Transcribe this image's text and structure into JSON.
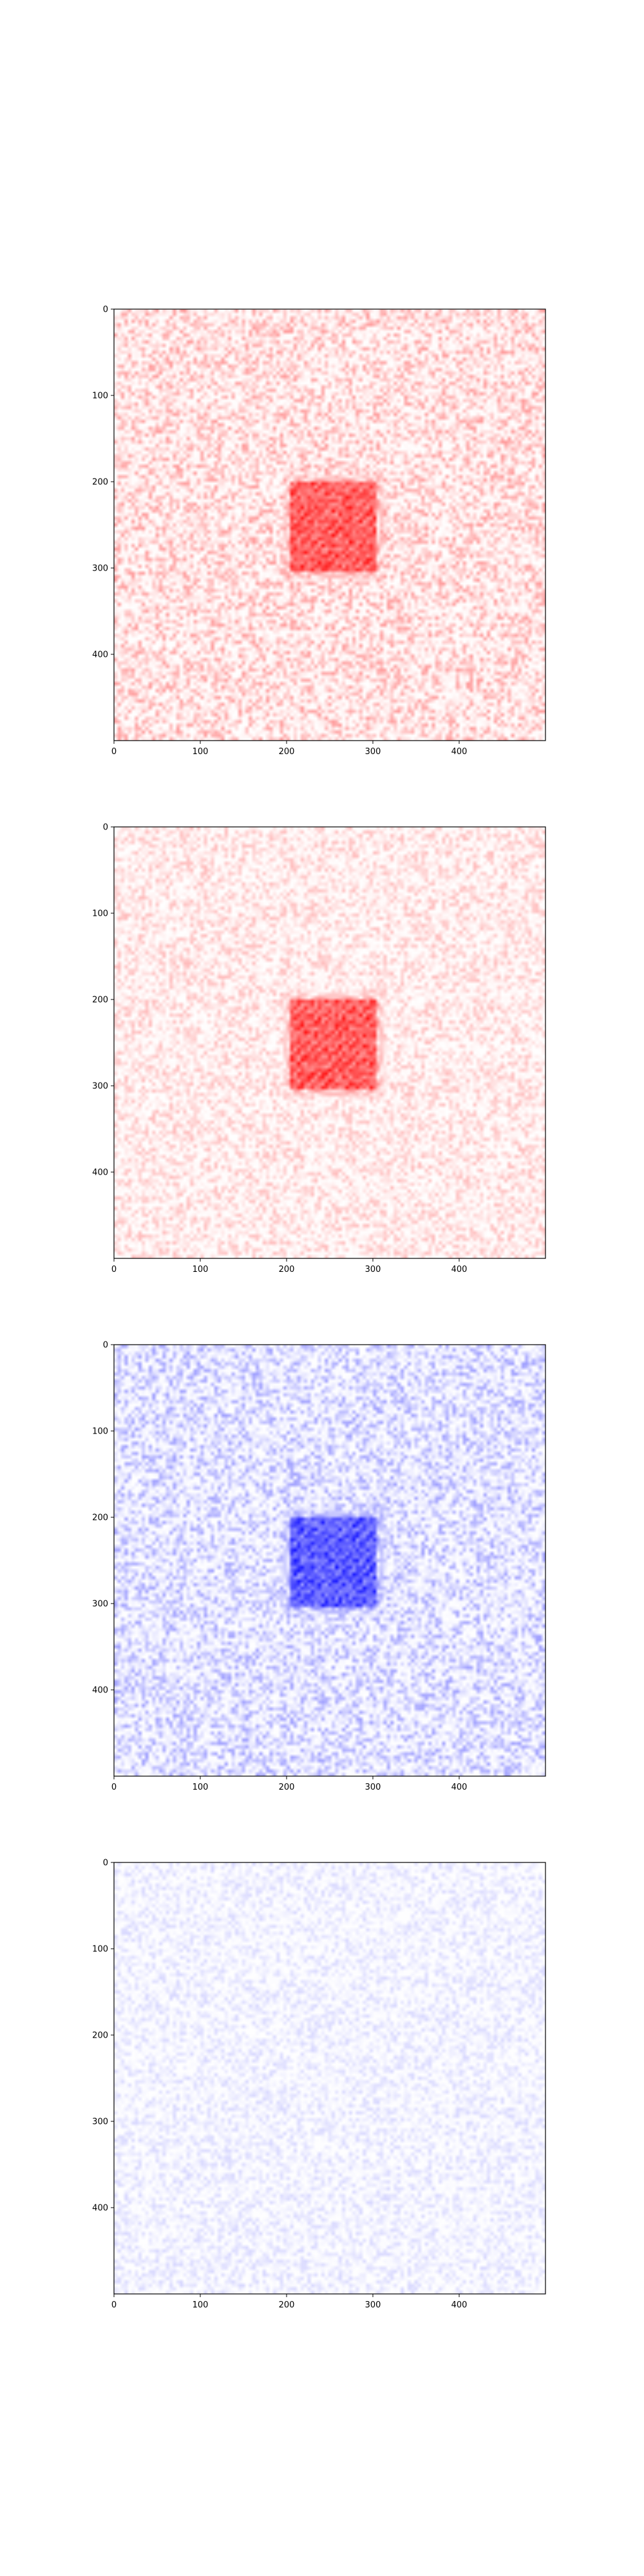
{
  "figure": {
    "background": "#ffffff"
  },
  "chart_data": [
    {
      "type": "heatmap",
      "title": "",
      "xlabel": "",
      "ylabel": "",
      "xlim": [
        0,
        500
      ],
      "ylim": [
        500,
        0
      ],
      "xticks": [
        0,
        100,
        200,
        300,
        400
      ],
      "yticks": [
        0,
        100,
        200,
        300,
        400
      ],
      "xtick_labels": [
        "0",
        "100",
        "200",
        "300",
        "400"
      ],
      "ytick_labels": [
        "0",
        "100",
        "200",
        "300",
        "400"
      ],
      "colormap": [
        "#ffffff",
        "#ff0000"
      ],
      "background_level": 0.18,
      "hotspot": {
        "x_range": [
          205,
          305
        ],
        "y_range": [
          200,
          305
        ],
        "level": 0.95
      },
      "grid": false
    },
    {
      "type": "heatmap",
      "title": "",
      "xlabel": "",
      "ylabel": "",
      "xlim": [
        0,
        500
      ],
      "ylim": [
        500,
        0
      ],
      "xticks": [
        0,
        100,
        200,
        300,
        400
      ],
      "yticks": [
        0,
        100,
        200,
        300,
        400
      ],
      "xtick_labels": [
        "0",
        "100",
        "200",
        "300",
        "400"
      ],
      "ytick_labels": [
        "0",
        "100",
        "200",
        "300",
        "400"
      ],
      "colormap": [
        "#ffffff",
        "#ff0000"
      ],
      "background_level": 0.12,
      "hotspot": {
        "x_range": [
          205,
          305
        ],
        "y_range": [
          200,
          305
        ],
        "level": 0.95
      },
      "grid": false
    },
    {
      "type": "heatmap",
      "title": "",
      "xlabel": "",
      "ylabel": "",
      "xlim": [
        0,
        500
      ],
      "ylim": [
        500,
        0
      ],
      "xticks": [
        0,
        100,
        200,
        300,
        400
      ],
      "yticks": [
        0,
        100,
        200,
        300,
        400
      ],
      "xtick_labels": [
        "0",
        "100",
        "200",
        "300",
        "400"
      ],
      "ytick_labels": [
        "0",
        "100",
        "200",
        "300",
        "400"
      ],
      "colormap": [
        "#ffffff",
        "#0000ff"
      ],
      "background_level": 0.17,
      "hotspot": {
        "x_range": [
          205,
          305
        ],
        "y_range": [
          200,
          305
        ],
        "level": 0.95
      },
      "grid": false
    },
    {
      "type": "heatmap",
      "title": "",
      "xlabel": "",
      "ylabel": "",
      "xlim": [
        0,
        500
      ],
      "ylim": [
        500,
        0
      ],
      "xticks": [
        0,
        100,
        200,
        300,
        400
      ],
      "yticks": [
        0,
        100,
        200,
        300,
        400
      ],
      "xtick_labels": [
        "0",
        "100",
        "200",
        "300",
        "400"
      ],
      "ytick_labels": [
        "0",
        "100",
        "200",
        "300",
        "400"
      ],
      "colormap": [
        "#ffffff",
        "#0000ff"
      ],
      "background_level": 0.07,
      "hotspot": null,
      "grid": false
    }
  ]
}
